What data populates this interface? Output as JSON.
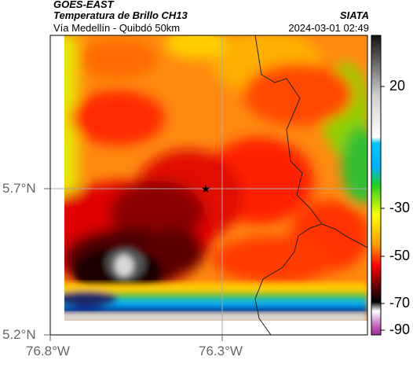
{
  "header": {
    "satellite": "GOES-EAST",
    "product": "Temperatura de Brillo CH13",
    "region": "Vía Medellín - Quibdó 50km",
    "organization": "SIATA",
    "timestamp": "2024-03-01 02:49"
  },
  "axes": {
    "lat_labels": [
      "5.7°N",
      "5.2°N"
    ],
    "lon_labels": [
      "76.8°W",
      "76.3°W"
    ]
  },
  "colorbar": {
    "labels": [
      "20",
      "-30",
      "-50",
      "-70",
      "-90"
    ],
    "stops": [
      "#1a1a1a",
      "#bdbdbd",
      "#ffffff",
      "#00c8ff",
      "#1fd11f",
      "#ffff00",
      "#ff9900",
      "#ff0000",
      "#5a0000",
      "#000000",
      "#ffffff",
      "#b040b0"
    ]
  },
  "marker": {
    "name": "star-marker"
  }
}
